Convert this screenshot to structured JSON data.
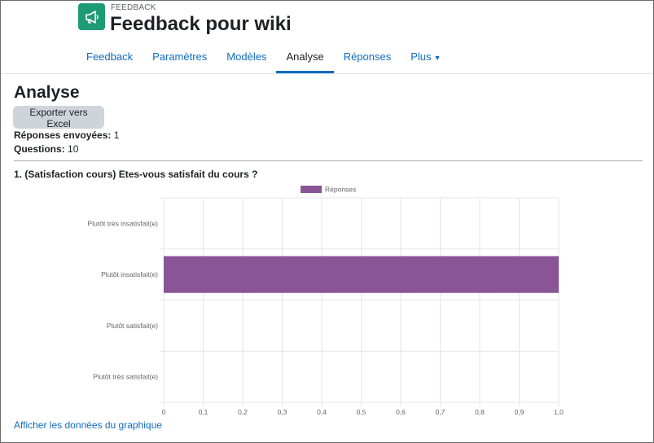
{
  "header": {
    "kicker": "FEEDBACK",
    "title": "Feedback pour wiki",
    "icon": "megaphone-icon",
    "icon_color": "#1c9b74"
  },
  "tabs": [
    {
      "label": "Feedback"
    },
    {
      "label": "Paramètres"
    },
    {
      "label": "Modèles"
    },
    {
      "label": "Analyse",
      "active": true
    },
    {
      "label": "Réponses"
    },
    {
      "label": "Plus"
    }
  ],
  "page": {
    "heading": "Analyse",
    "export_label": "Exporter vers Excel",
    "responses_label": "Réponses envoyées:",
    "responses_value": "1",
    "questions_label": "Questions:",
    "questions_value": "10",
    "question_title": "1. (Satisfaction cours) Etes-vous satisfait du cours ?",
    "show_data_link": "Afficher les données du graphique"
  },
  "chart_data": {
    "type": "bar",
    "orientation": "horizontal",
    "categories": [
      "Plutôt très insatisfait(e)",
      "Plutôt insatisfait(e)",
      "Plutôt satisfait(e)",
      "Plutôt très satisfait(e)"
    ],
    "series": [
      {
        "name": "Réponses",
        "values": [
          0,
          1,
          0,
          0
        ],
        "color": "#8a5597"
      }
    ],
    "xlim": [
      0,
      1
    ],
    "x_ticks": [
      "0",
      "0,1",
      "0,2",
      "0,3",
      "0,4",
      "0,5",
      "0,6",
      "0,7",
      "0,8",
      "0,9",
      "1,0"
    ],
    "grid": true,
    "legend_position": "top"
  }
}
